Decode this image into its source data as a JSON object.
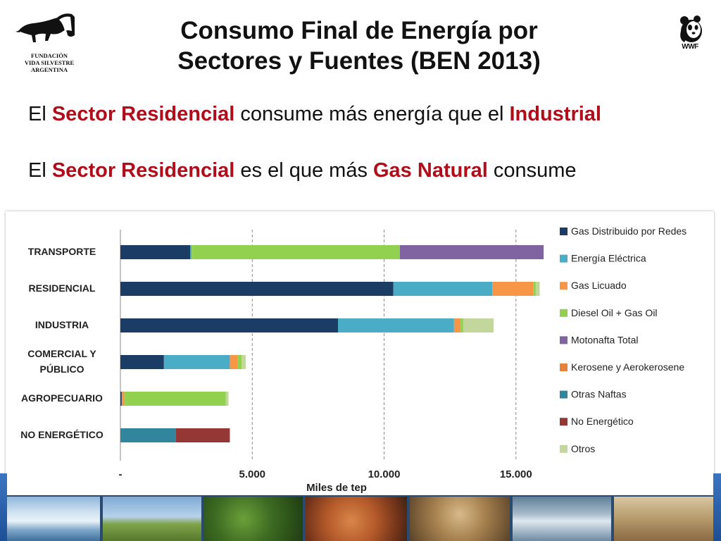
{
  "logo_left": {
    "icon": "anteater-icon",
    "line1": "FUNDACIÓN",
    "line2": "VIDA SILVESTRE",
    "line3": "ARGENTINA"
  },
  "logo_right": {
    "icon": "panda-icon",
    "text": "WWF"
  },
  "title": {
    "line1": "Consumo Final de Energía por",
    "line2": "Sectores y Fuentes (BEN 2013)"
  },
  "statements": [
    {
      "parts": [
        {
          "text": "El ",
          "highlight": false
        },
        {
          "text": "Sector Residencial",
          "highlight": true
        },
        {
          "text": " consume más energía que el ",
          "highlight": false
        },
        {
          "text": "Industrial",
          "highlight": true
        }
      ]
    },
    {
      "parts": [
        {
          "text": "El ",
          "highlight": false
        },
        {
          "text": "Sector Residencial",
          "highlight": true
        },
        {
          "text": " es el que más ",
          "highlight": false
        },
        {
          "text": "Gas Natural",
          "highlight": true
        },
        {
          "text": " consume",
          "highlight": false
        }
      ]
    }
  ],
  "colors": {
    "highlight": "#b00d1a"
  },
  "chart_data": {
    "type": "bar",
    "orientation": "horizontal",
    "stacked": true,
    "title": "",
    "xlabel": "Miles de tep",
    "ylabel": "",
    "xlim": [
      0,
      16100
    ],
    "xticks": [
      0,
      5000,
      10000,
      15000
    ],
    "xtick_labels": [
      "-",
      "5.000",
      "10.000",
      "15.000"
    ],
    "grid": "vertical-dashed",
    "legend_position": "right",
    "categories": [
      "TRANSPORTE",
      "RESIDENCIAL",
      "INDUSTRIA",
      "COMERCIAL Y PÚBLICO",
      "AGROPECUARIO",
      "NO ENERGÉTICO"
    ],
    "category_lines": [
      [
        "TRANSPORTE"
      ],
      [
        "RESIDENCIAL"
      ],
      [
        "INDUSTRIA"
      ],
      [
        "COMERCIAL Y",
        "PÚBLICO"
      ],
      [
        "AGROPECUARIO"
      ],
      [
        "NO ENERGÉTICO"
      ]
    ],
    "series": [
      {
        "name": "Gas Distribuido  por Redes",
        "color": "#1b3c64",
        "values": [
          2650,
          10350,
          8250,
          1650,
          50,
          0
        ]
      },
      {
        "name": "Energía Eléctrica",
        "color": "#4bacc6",
        "values": [
          50,
          3750,
          4400,
          2500,
          0,
          0
        ]
      },
      {
        "name": "Gas Licuado",
        "color": "#f79646",
        "values": [
          0,
          1550,
          250,
          300,
          100,
          0
        ]
      },
      {
        "name": "Diesel Oil + Gas Oil",
        "color": "#92d050",
        "values": [
          7900,
          100,
          100,
          150,
          3850,
          0
        ]
      },
      {
        "name": "Motonafta Total",
        "color": "#8064a2",
        "values": [
          5450,
          0,
          0,
          0,
          0,
          0
        ]
      },
      {
        "name": "Kerosene y Aerokerosene",
        "color": "#e6833a",
        "values": [
          0,
          0,
          0,
          0,
          0,
          0
        ]
      },
      {
        "name": "Otras Naftas",
        "color": "#31859c",
        "values": [
          0,
          0,
          0,
          0,
          0,
          2100
        ]
      },
      {
        "name": "No Energético",
        "color": "#953735",
        "values": [
          0,
          0,
          0,
          0,
          0,
          2050
        ]
      },
      {
        "name": "Otros",
        "color": "#c3d69b",
        "values": [
          0,
          150,
          1150,
          150,
          100,
          0
        ]
      }
    ]
  }
}
